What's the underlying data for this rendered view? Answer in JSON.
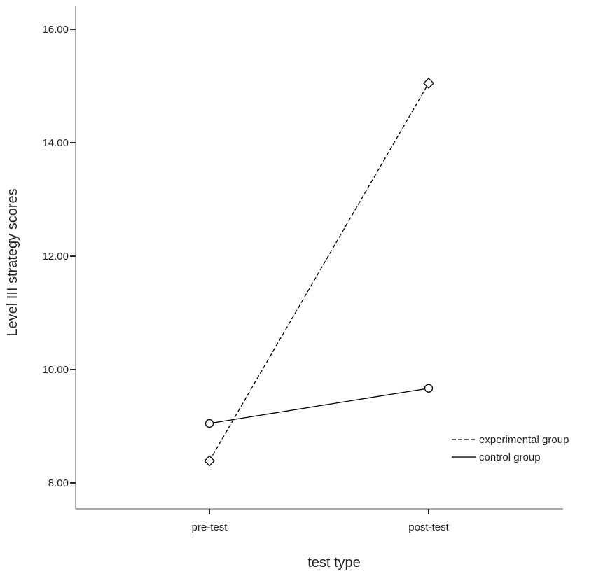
{
  "chart_data": {
    "type": "line",
    "categories": [
      "pre-test",
      "post-test"
    ],
    "series": [
      {
        "name": "experimental group",
        "values": [
          8.39,
          15.05
        ],
        "line_style": "dashed",
        "marker": "diamond",
        "color": "#000000"
      },
      {
        "name": "control group",
        "values": [
          9.05,
          9.67
        ],
        "line_style": "solid",
        "marker": "circle",
        "color": "#000000"
      }
    ],
    "xlabel": "test type",
    "ylabel": "Level III strategy scores",
    "ylim": [
      7.6,
      16.4
    ],
    "yticks": [
      8,
      10,
      12,
      14,
      16
    ],
    "ytick_labels": [
      "8.00",
      "10.00",
      "12.00",
      "14.00",
      "16.00"
    ],
    "grid": false,
    "legend_position": "right"
  }
}
